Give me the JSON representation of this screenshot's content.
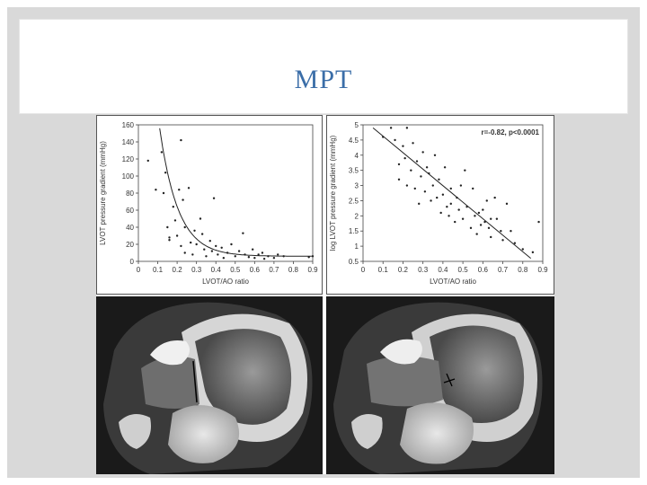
{
  "slide": {
    "title": "MPT"
  },
  "chart_data": [
    {
      "type": "scatter",
      "xlabel": "LVOT/AO ratio",
      "ylabel": "LVOT pressure gradient (mmHg)",
      "xlim": [
        0,
        0.9
      ],
      "ylim": [
        0,
        160
      ],
      "x_ticks": [
        "0",
        "0.1",
        "0.2",
        "0.3",
        "0.4",
        "0.5",
        "0.6",
        "0.7",
        "0.8",
        "0.9"
      ],
      "y_ticks": [
        "0",
        "20",
        "40",
        "60",
        "80",
        "100",
        "120",
        "140",
        "160"
      ],
      "fit": "exponential-decay",
      "points": [
        [
          0.05,
          118
        ],
        [
          0.09,
          84
        ],
        [
          0.12,
          128
        ],
        [
          0.14,
          104
        ],
        [
          0.13,
          80
        ],
        [
          0.15,
          40
        ],
        [
          0.16,
          28
        ],
        [
          0.16,
          25
        ],
        [
          0.18,
          64
        ],
        [
          0.19,
          48
        ],
        [
          0.2,
          30
        ],
        [
          0.21,
          84
        ],
        [
          0.22,
          142
        ],
        [
          0.22,
          18
        ],
        [
          0.23,
          72
        ],
        [
          0.24,
          40
        ],
        [
          0.24,
          10
        ],
        [
          0.26,
          86
        ],
        [
          0.27,
          22
        ],
        [
          0.28,
          8
        ],
        [
          0.29,
          36
        ],
        [
          0.3,
          20
        ],
        [
          0.32,
          50
        ],
        [
          0.33,
          32
        ],
        [
          0.34,
          14
        ],
        [
          0.35,
          6
        ],
        [
          0.37,
          24
        ],
        [
          0.38,
          12
        ],
        [
          0.39,
          74
        ],
        [
          0.4,
          18
        ],
        [
          0.41,
          8
        ],
        [
          0.43,
          16
        ],
        [
          0.44,
          4
        ],
        [
          0.46,
          10
        ],
        [
          0.48,
          20
        ],
        [
          0.5,
          6
        ],
        [
          0.52,
          12
        ],
        [
          0.54,
          33
        ],
        [
          0.55,
          8
        ],
        [
          0.57,
          5
        ],
        [
          0.59,
          14
        ],
        [
          0.6,
          4
        ],
        [
          0.62,
          8
        ],
        [
          0.64,
          10
        ],
        [
          0.65,
          3
        ],
        [
          0.67,
          6
        ],
        [
          0.7,
          4
        ],
        [
          0.72,
          8
        ],
        [
          0.75,
          6
        ],
        [
          0.88,
          5
        ],
        [
          0.9,
          6
        ]
      ]
    },
    {
      "type": "scatter",
      "xlabel": "LVOT/AO ratio",
      "ylabel": "log LVOT pressure gradient (mmHg)",
      "annotation": "r=-0.82, p<0.0001",
      "xlim": [
        0,
        0.9
      ],
      "ylim": [
        0.5,
        5
      ],
      "x_ticks": [
        "0",
        "0.1",
        "0.2",
        "0.3",
        "0.4",
        "0.5",
        "0.6",
        "0.7",
        "0.8",
        "0.9"
      ],
      "y_ticks": [
        "0.5",
        "1",
        "1.5",
        "2",
        "2.5",
        "3",
        "3.5",
        "4",
        "4.5",
        "5"
      ],
      "fit": "linear",
      "fit_line": [
        [
          0.05,
          4.9
        ],
        [
          0.84,
          0.6
        ]
      ],
      "points": [
        [
          0.1,
          4.6
        ],
        [
          0.14,
          4.9
        ],
        [
          0.16,
          4.5
        ],
        [
          0.18,
          3.7
        ],
        [
          0.18,
          3.2
        ],
        [
          0.2,
          4.3
        ],
        [
          0.21,
          3.9
        ],
        [
          0.22,
          4.9
        ],
        [
          0.22,
          3.0
        ],
        [
          0.24,
          3.5
        ],
        [
          0.25,
          4.4
        ],
        [
          0.26,
          2.9
        ],
        [
          0.27,
          3.8
        ],
        [
          0.28,
          2.4
        ],
        [
          0.29,
          3.3
        ],
        [
          0.3,
          4.1
        ],
        [
          0.31,
          2.8
        ],
        [
          0.32,
          3.6
        ],
        [
          0.33,
          3.4
        ],
        [
          0.34,
          2.5
        ],
        [
          0.35,
          3.0
        ],
        [
          0.36,
          4.0
        ],
        [
          0.37,
          2.6
        ],
        [
          0.38,
          3.2
        ],
        [
          0.39,
          2.1
        ],
        [
          0.4,
          2.7
        ],
        [
          0.41,
          3.6
        ],
        [
          0.42,
          2.3
        ],
        [
          0.43,
          2.0
        ],
        [
          0.44,
          2.9
        ],
        [
          0.46,
          1.8
        ],
        [
          0.47,
          2.6
        ],
        [
          0.48,
          2.2
        ],
        [
          0.49,
          3.0
        ],
        [
          0.5,
          1.9
        ],
        [
          0.51,
          3.5
        ],
        [
          0.52,
          2.3
        ],
        [
          0.54,
          1.6
        ],
        [
          0.55,
          2.9
        ],
        [
          0.56,
          2.0
        ],
        [
          0.57,
          1.4
        ],
        [
          0.59,
          1.7
        ],
        [
          0.6,
          2.2
        ],
        [
          0.61,
          1.8
        ],
        [
          0.62,
          2.5
        ],
        [
          0.63,
          1.6
        ],
        [
          0.64,
          1.3
        ],
        [
          0.66,
          2.6
        ],
        [
          0.67,
          1.9
        ],
        [
          0.69,
          1.5
        ],
        [
          0.7,
          1.2
        ],
        [
          0.72,
          2.4
        ],
        [
          0.74,
          1.5
        ],
        [
          0.76,
          1.1
        ],
        [
          0.8,
          0.9
        ],
        [
          0.85,
          0.8
        ],
        [
          0.88,
          1.8
        ],
        [
          0.64,
          1.9
        ],
        [
          0.58,
          2.1
        ],
        [
          0.44,
          2.4
        ]
      ]
    }
  ]
}
